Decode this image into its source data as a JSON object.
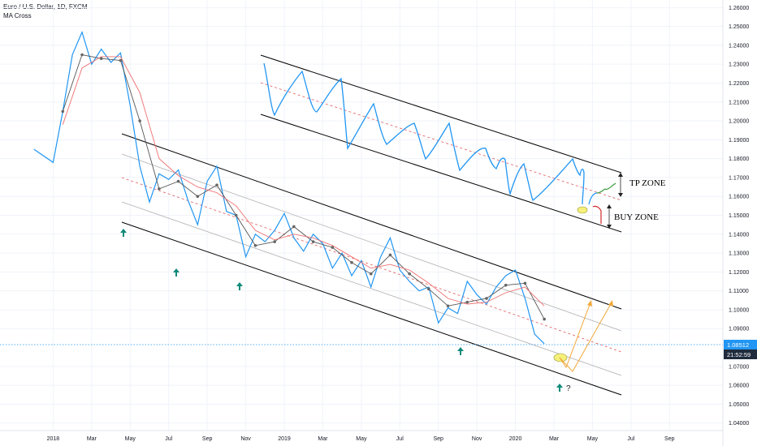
{
  "legend": {
    "symbol_line": "Euro / U.S. Dollar, 1D, FXCM",
    "indicator": "MA Cross"
  },
  "colors": {
    "price": "#2196f3",
    "ma_fast": "#555555",
    "ma_slow": "#f06f6f",
    "channel": "#000000",
    "channel_inner": "#b0b0b0",
    "midline": "#e05a5a",
    "arrow_up": "#0f8a7a",
    "tp_arrow": "#3a9a3a",
    "buy_arrow": "#d12a2a",
    "projection": "#f2a93b",
    "highlight": "#f5f07a",
    "price_tag": "#2196f3",
    "time_tag": "#1f2b3d"
  },
  "annotations": {
    "tp_zone": "TP ZONE",
    "buy_zone": "BUY ZONE",
    "question": "?"
  },
  "price_tag": "1.08512",
  "time_tag": "21:52:59",
  "chart_data": {
    "type": "line",
    "title": "Euro / U.S. Dollar, 1D, FXCM",
    "y_axis": {
      "side": "right",
      "range": [
        1.036,
        1.264
      ],
      "tick_labels": [
        "1.26000",
        "1.25000",
        "1.24000",
        "1.23000",
        "1.22000",
        "1.21000",
        "1.20000",
        "1.19000",
        "1.18000",
        "1.17000",
        "1.16000",
        "1.15000",
        "1.14000",
        "1.13000",
        "1.12000",
        "1.11000",
        "1.10000",
        "1.09000",
        "1.07000",
        "1.06000",
        "1.05000",
        "1.04000"
      ],
      "tick_values": [
        1.26,
        1.25,
        1.24,
        1.23,
        1.22,
        1.21,
        1.2,
        1.19,
        1.18,
        1.17,
        1.16,
        1.15,
        1.14,
        1.13,
        1.12,
        1.11,
        1.1,
        1.09,
        1.07,
        1.06,
        1.05,
        1.04
      ]
    },
    "x_axis": {
      "tick_labels": [
        "2018",
        "Mar",
        "May",
        "Jul",
        "Sep",
        "Nov",
        "2019",
        "Mar",
        "May",
        "Jul",
        "Sep",
        "Nov",
        "2020",
        "Mar",
        "May",
        "Jul",
        "Sep"
      ]
    },
    "current_price": 1.08512,
    "series": [
      {
        "name": "EURUSD",
        "role": "price",
        "x": [
          "2017-12",
          "2018-01",
          "2018-01",
          "2018-02",
          "2018-02",
          "2018-03",
          "2018-03",
          "2018-04",
          "2018-04",
          "2018-05",
          "2018-05",
          "2018-06",
          "2018-06",
          "2018-07",
          "2018-07",
          "2018-08",
          "2018-08",
          "2018-09",
          "2018-09",
          "2018-10",
          "2018-10",
          "2018-11",
          "2018-11",
          "2018-12",
          "2018-12",
          "2019-01",
          "2019-01",
          "2019-02",
          "2019-02",
          "2019-03",
          "2019-03",
          "2019-04",
          "2019-04",
          "2019-05",
          "2019-05",
          "2019-06",
          "2019-06",
          "2019-07",
          "2019-07",
          "2019-08",
          "2019-08",
          "2019-09",
          "2019-09",
          "2019-10",
          "2019-10",
          "2019-11",
          "2019-11",
          "2019-12",
          "2019-12",
          "2020-01",
          "2020-01",
          "2020-02",
          "2020-02"
        ],
        "values": [
          1.185,
          1.178,
          1.205,
          1.235,
          1.247,
          1.23,
          1.238,
          1.231,
          1.236,
          1.208,
          1.176,
          1.157,
          1.172,
          1.169,
          1.174,
          1.158,
          1.145,
          1.168,
          1.176,
          1.152,
          1.15,
          1.128,
          1.14,
          1.136,
          1.142,
          1.151,
          1.138,
          1.131,
          1.14,
          1.135,
          1.122,
          1.13,
          1.118,
          1.126,
          1.112,
          1.128,
          1.138,
          1.121,
          1.115,
          1.11,
          1.112,
          1.093,
          1.101,
          1.098,
          1.115,
          1.108,
          1.103,
          1.112,
          1.118,
          1.121,
          1.106,
          1.087,
          1.082
        ]
      },
      {
        "name": "MA fast",
        "role": "ma_fast",
        "x": [
          "2018-01",
          "2018-02",
          "2018-03",
          "2018-04",
          "2018-05",
          "2018-06",
          "2018-07",
          "2018-08",
          "2018-09",
          "2018-10",
          "2018-11",
          "2018-12",
          "2019-01",
          "2019-02",
          "2019-03",
          "2019-04",
          "2019-05",
          "2019-06",
          "2019-07",
          "2019-08",
          "2019-09",
          "2019-10",
          "2019-11",
          "2019-12",
          "2020-01",
          "2020-02"
        ],
        "values": [
          1.205,
          1.235,
          1.233,
          1.232,
          1.2,
          1.164,
          1.168,
          1.16,
          1.166,
          1.15,
          1.134,
          1.136,
          1.144,
          1.136,
          1.133,
          1.125,
          1.119,
          1.129,
          1.119,
          1.111,
          1.102,
          1.104,
          1.106,
          1.113,
          1.114,
          1.095
        ]
      },
      {
        "name": "MA slow",
        "role": "ma_slow",
        "x": [
          "2018-01",
          "2018-02",
          "2018-03",
          "2018-04",
          "2018-05",
          "2018-06",
          "2018-07",
          "2018-08",
          "2018-09",
          "2018-10",
          "2018-11",
          "2018-12",
          "2019-01",
          "2019-02",
          "2019-03",
          "2019-04",
          "2019-05",
          "2019-06",
          "2019-07",
          "2019-08",
          "2019-09",
          "2019-10",
          "2019-11",
          "2019-12",
          "2020-01",
          "2020-02"
        ],
        "values": [
          1.198,
          1.228,
          1.234,
          1.234,
          1.215,
          1.18,
          1.171,
          1.165,
          1.162,
          1.155,
          1.142,
          1.137,
          1.14,
          1.138,
          1.134,
          1.128,
          1.122,
          1.124,
          1.121,
          1.114,
          1.106,
          1.103,
          1.104,
          1.109,
          1.112,
          1.102
        ]
      }
    ],
    "grid": true,
    "legend_position": "top-left"
  }
}
